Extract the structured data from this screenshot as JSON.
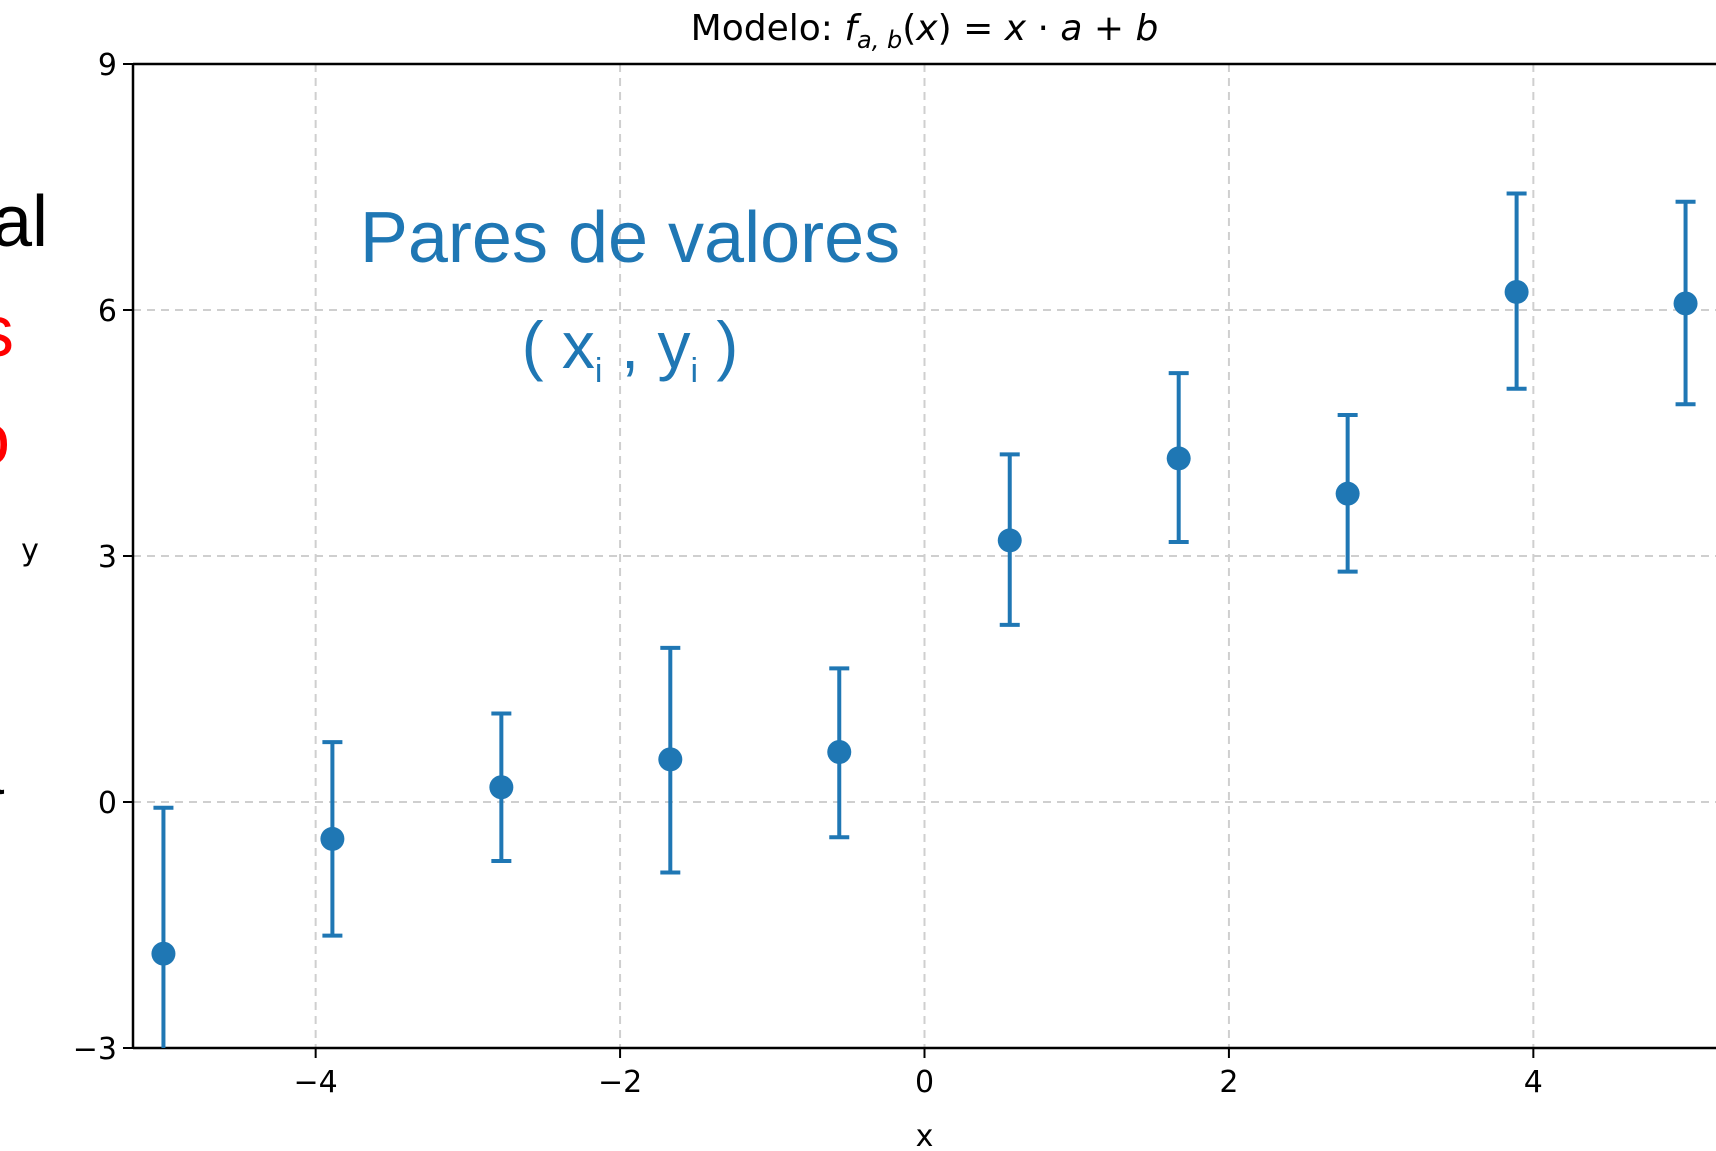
{
  "left_edge_fragments": [
    {
      "text": "al",
      "color": "#000000"
    },
    {
      "text": "s",
      "color": "#ff0000"
    },
    {
      "text": "o",
      "color": "#ff0000"
    },
    {
      "text": "a",
      "color": "#000000"
    }
  ],
  "chart_data": {
    "type": "scatter",
    "title_prefix": "Modelo:",
    "title_formula": "f_{a,b}(x) = x · a + b",
    "xlabel": "x",
    "ylabel": "y",
    "xlim": [
      -5.2,
      5.2
    ],
    "ylim": [
      -3,
      9
    ],
    "xticks": [
      -4,
      -2,
      0,
      2,
      4
    ],
    "yticks": [
      -3,
      0,
      3,
      6,
      9
    ],
    "xtick_labels": [
      "−4",
      "−2",
      "0",
      "2",
      "4"
    ],
    "ytick_labels": [
      "−3",
      "0",
      "3",
      "6",
      "9"
    ],
    "grid": true,
    "color": "#1f77b4",
    "annotation": {
      "line1": "Pares de valores",
      "line2": "( x",
      "sub": "i",
      "comma": " , y",
      "close": " )"
    },
    "points": [
      {
        "x": -5.0,
        "y": -1.85,
        "lo": -3.1,
        "hi": -0.07
      },
      {
        "x": -3.89,
        "y": -0.45,
        "lo": -1.63,
        "hi": 0.73
      },
      {
        "x": -2.78,
        "y": 0.18,
        "lo": -0.72,
        "hi": 1.08
      },
      {
        "x": -1.67,
        "y": 0.52,
        "lo": -0.86,
        "hi": 1.88
      },
      {
        "x": -0.56,
        "y": 0.61,
        "lo": -0.43,
        "hi": 1.63
      },
      {
        "x": 0.56,
        "y": 3.19,
        "lo": 2.16,
        "hi": 4.24
      },
      {
        "x": 1.67,
        "y": 4.19,
        "lo": 3.17,
        "hi": 5.23
      },
      {
        "x": 2.78,
        "y": 3.76,
        "lo": 2.81,
        "hi": 4.72
      },
      {
        "x": 3.89,
        "y": 6.22,
        "lo": 5.04,
        "hi": 7.42
      },
      {
        "x": 5.0,
        "y": 6.08,
        "lo": 4.85,
        "hi": 7.32
      }
    ]
  }
}
